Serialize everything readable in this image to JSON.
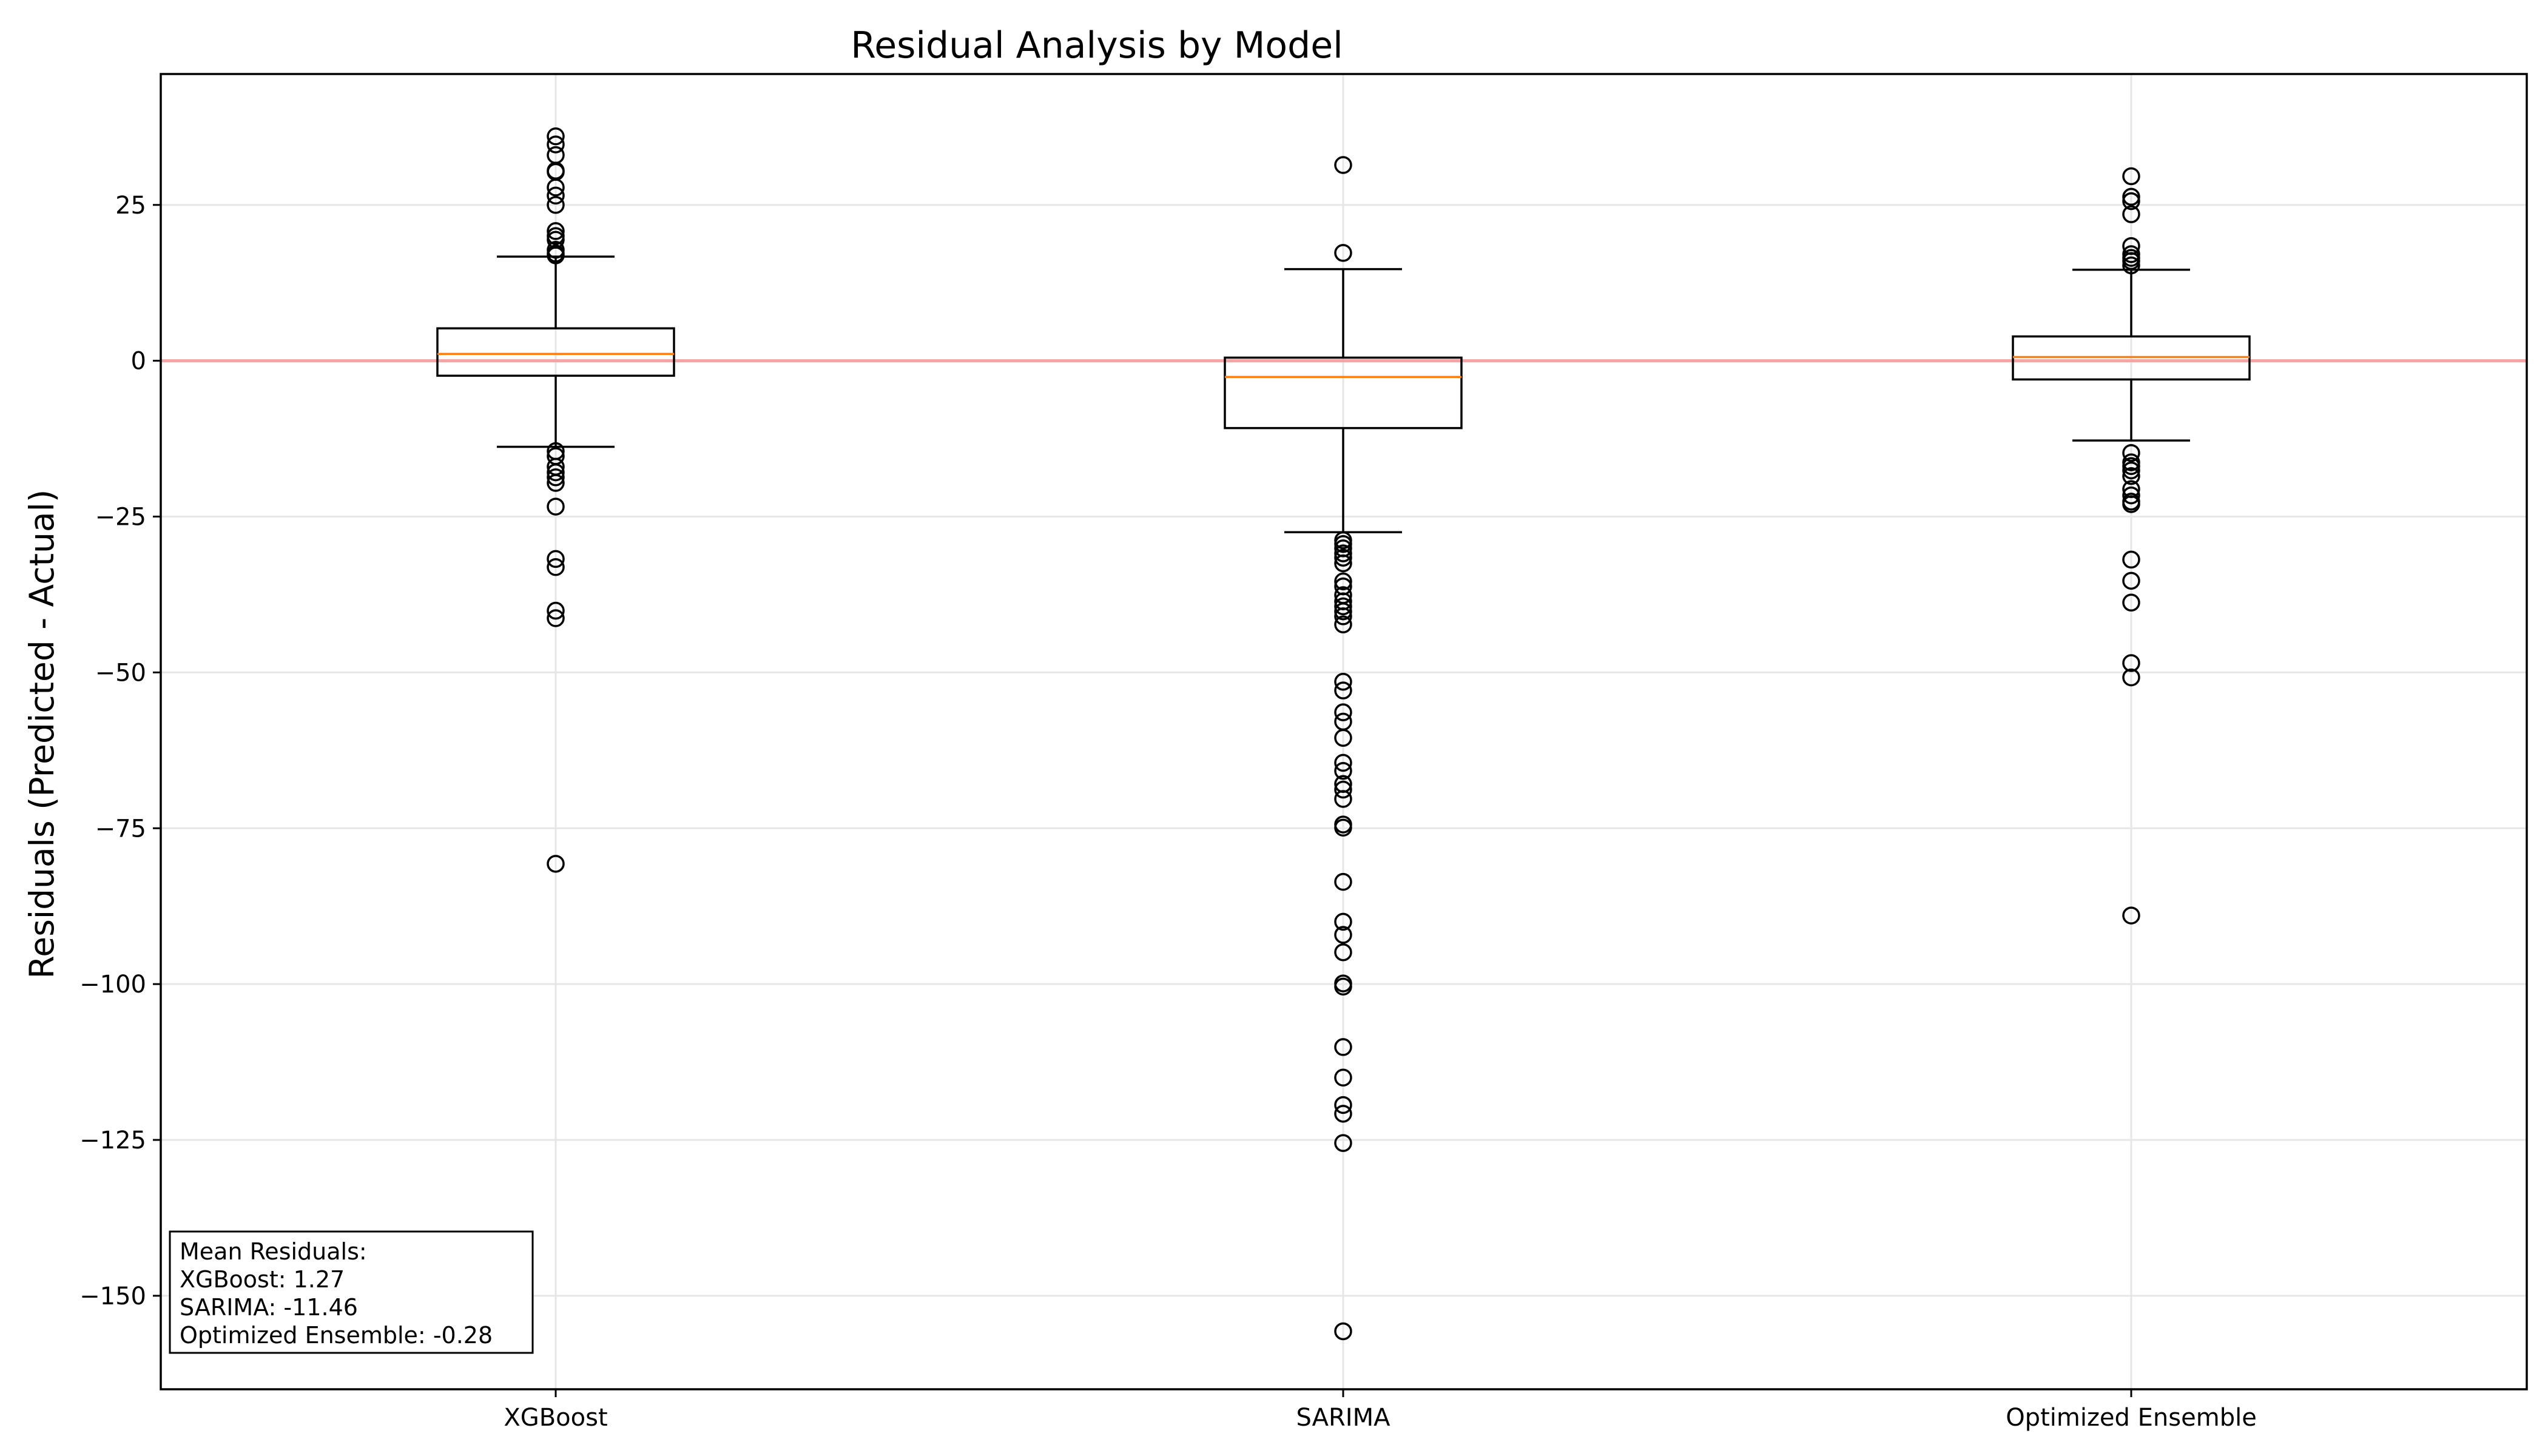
{
  "chart_data": {
    "type": "boxplot",
    "title": "Residual Analysis by Model",
    "xlabel": "",
    "ylabel": "Residuals (Predicted - Actual)",
    "ylim": [
      -165,
      46
    ],
    "yticks": [
      25,
      0,
      -25,
      -50,
      -75,
      -100,
      -125,
      -150
    ],
    "ytick_labels": [
      "25",
      "0",
      "−25",
      "−50",
      "−75",
      "−100",
      "−125",
      "−150"
    ],
    "grid": true,
    "reference_line": {
      "y": 0,
      "color": "#f4a4a4"
    },
    "categories": [
      "XGBoost",
      "SARIMA",
      "Optimized Ensemble"
    ],
    "boxes": [
      {
        "name": "XGBoost",
        "whislo": -13.8,
        "q1": -2.4,
        "med": 1.1,
        "q3": 5.2,
        "whishi": 16.7,
        "fliers": [
          36.0,
          34.7,
          33.0,
          30.5,
          30.3,
          27.8,
          26.5,
          25.0,
          20.8,
          20.0,
          19.4,
          17.8,
          17.2,
          16.9,
          -14.5,
          -15.3,
          -17.0,
          -17.9,
          -18.7,
          -19.6,
          -23.4,
          -31.8,
          -33.1,
          -40.1,
          -41.3,
          -80.7
        ]
      },
      {
        "name": "SARIMA",
        "whislo": -27.5,
        "q1": -10.8,
        "med": -2.6,
        "q3": 0.5,
        "whishi": 14.7,
        "fliers": [
          31.4,
          17.3,
          -28.8,
          -29.4,
          -30.1,
          -30.9,
          -31.6,
          -32.5,
          -35.4,
          -36.2,
          -37.6,
          -38.6,
          -39.4,
          -40.2,
          -41.0,
          -42.3,
          -51.5,
          -52.9,
          -56.4,
          -57.9,
          -60.5,
          -64.5,
          -65.8,
          -67.9,
          -68.8,
          -70.3,
          -74.4,
          -74.9,
          -83.6,
          -90.0,
          -92.1,
          -94.9,
          -99.9,
          -100.4,
          -110.1,
          -115.0,
          -119.4,
          -120.8,
          -125.5,
          -155.7
        ]
      },
      {
        "name": "Optimized Ensemble",
        "whislo": -12.8,
        "q1": -3.0,
        "med": 0.6,
        "q3": 3.9,
        "whishi": 14.6,
        "fliers": [
          29.6,
          26.3,
          25.6,
          23.5,
          18.4,
          17.1,
          16.5,
          16.0,
          15.3,
          -14.8,
          -16.3,
          -16.9,
          -17.6,
          -18.5,
          -20.6,
          -21.6,
          -22.6,
          -23.0,
          -31.9,
          -35.3,
          -38.8,
          -48.5,
          -50.8,
          -89.0
        ]
      }
    ],
    "annotation": {
      "lines": [
        "Mean Residuals:",
        "XGBoost: 1.27",
        "SARIMA: -11.46",
        "Optimized Ensemble: -0.28"
      ],
      "placement": "bottom-left"
    },
    "colors": {
      "box": "#000000",
      "median": "#ff7f0e",
      "grid": "#e6e6e6",
      "zero_line": "#f4a4a4"
    }
  }
}
